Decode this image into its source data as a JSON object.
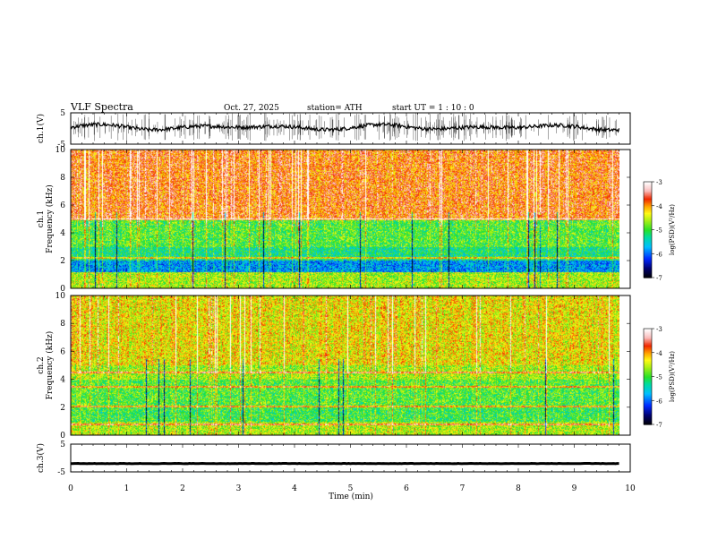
{
  "header": {
    "title": "VLF  Spectra",
    "date": "Oct. 27, 2025",
    "station": "station= ATH",
    "start": "start  UT  =   1  : 10 : 0"
  },
  "chart_data": [
    {
      "type": "line",
      "panel": "ch1-waveform",
      "ylabel": "ch.1(V)",
      "ylim": [
        -5,
        5
      ],
      "yticks": [
        "5",
        "-5"
      ],
      "xlim": [
        0,
        10
      ],
      "description_series": "broadband voltage trace, baseline ~ 0 to 1 V with impulsive spikes"
    },
    {
      "type": "heatmap",
      "panel": "ch1-spectrogram",
      "ylabel": "ch.1\nFrequency (kHz)",
      "ylabel_line1": "ch.1",
      "ylabel_line2": "Frequency  (kHz)",
      "ylim": [
        0,
        10
      ],
      "yticks": [
        "0",
        "2",
        "4",
        "6",
        "8",
        "10"
      ],
      "xlim": [
        0,
        9.8
      ],
      "colorbar": {
        "label": "log(PSD)(V²/Hz)",
        "range": [
          -7,
          -3
        ],
        "ticks": [
          "-3",
          "-4",
          "-5",
          "-6",
          "-7"
        ]
      },
      "bands_khz": [
        {
          "from": 0,
          "to": 1.2,
          "level": -4.6
        },
        {
          "from": 1.2,
          "to": 2.0,
          "level": -5.8
        },
        {
          "from": 2.0,
          "to": 3.0,
          "level": -5.2
        },
        {
          "from": 3.0,
          "to": 5.0,
          "level": -4.9
        },
        {
          "from": 5.0,
          "to": 10.0,
          "level": -3.8
        }
      ],
      "lines_khz": [
        2.2,
        5.0
      ]
    },
    {
      "type": "heatmap",
      "panel": "ch2-spectrogram",
      "ylabel_line1": "ch.2",
      "ylabel_line2": "Frequency  (kHz)",
      "ylim": [
        0,
        10
      ],
      "yticks": [
        "0",
        "2",
        "4",
        "6",
        "8",
        "10"
      ],
      "xlim": [
        0,
        9.8
      ],
      "colorbar": {
        "label": "log(PSD)(V²/Hz)",
        "range": [
          -7,
          -3
        ],
        "ticks": [
          "-3",
          "-4",
          "-5",
          "-6",
          "-7"
        ]
      },
      "bands_khz": [
        {
          "from": 0,
          "to": 1.0,
          "level": -4.6
        },
        {
          "from": 1.0,
          "to": 2.0,
          "level": -5.0
        },
        {
          "from": 2.0,
          "to": 4.0,
          "level": -4.9
        },
        {
          "from": 4.0,
          "to": 5.0,
          "level": -4.6
        },
        {
          "from": 5.0,
          "to": 10.0,
          "level": -4.3
        }
      ],
      "lines_khz": [
        0.8,
        2.1,
        3.5,
        4.5
      ]
    },
    {
      "type": "line",
      "panel": "ch3-waveform",
      "ylabel": "ch.3(V)",
      "ylim": [
        -5,
        5
      ],
      "yticks": [
        "5",
        "-5"
      ],
      "xlim": [
        0,
        10
      ],
      "description_series": "flat trace near -2 V"
    }
  ],
  "xaxis": {
    "label": "Time  (min)",
    "ticks": [
      "0",
      "1",
      "2",
      "3",
      "4",
      "5",
      "6",
      "7",
      "8",
      "9",
      "10"
    ],
    "range": [
      0,
      10
    ]
  }
}
